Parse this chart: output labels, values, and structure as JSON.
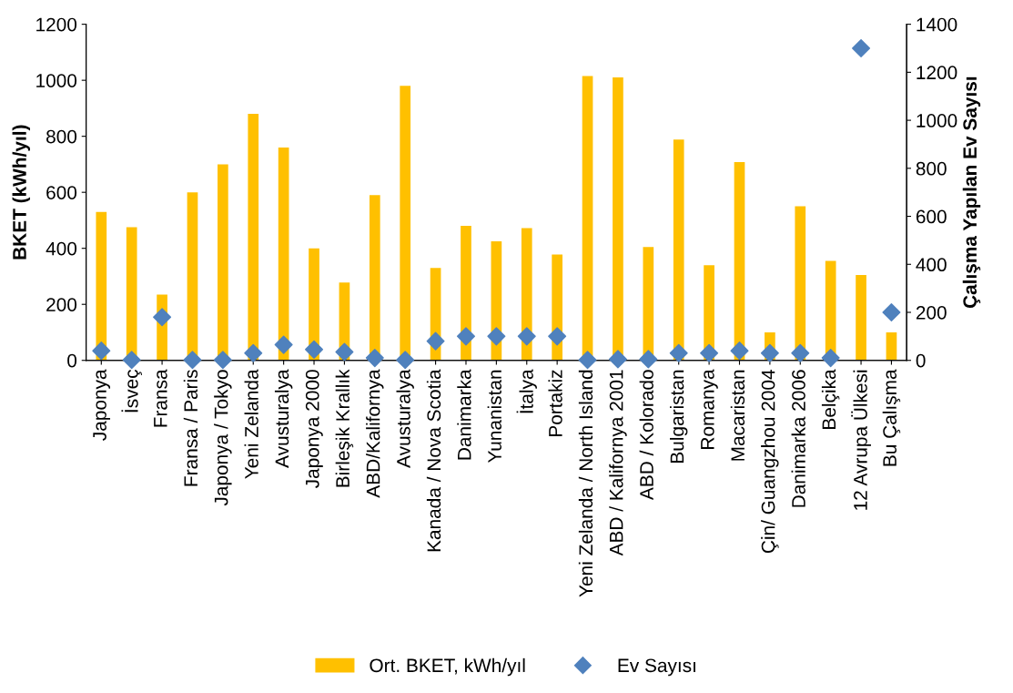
{
  "chart_data": {
    "type": "bar",
    "categories": [
      "Japonya",
      "İsveç",
      "Fransa",
      "Fransa / Paris",
      "Japonya / Tokyo",
      "Yeni Zelanda",
      "Avusturalya",
      "Japonya 2000",
      "Birleşik Krallık",
      "ABD/Kalifornya",
      "Avusturalya",
      "Kanada / Nova Scotia",
      "Danimarka",
      "Yunanistan",
      "İtalya",
      "Portakiz",
      "Yeni Zelanda / North Island",
      "ABD / Kalifornya 2001",
      "ABD / Kolorado",
      "Bulgaristan",
      "Romanya",
      "Macaristan",
      "Çin/ Guangzhou 2004",
      "Danimarka 2006",
      "Belçika",
      "12 Avrupa Ülkesi",
      "Bu Çalışma"
    ],
    "series": [
      {
        "name": "Ort. BKET, kWh/yıl",
        "color": "#ffc000",
        "values": [
          530,
          475,
          235,
          600,
          700,
          880,
          760,
          400,
          278,
          590,
          980,
          330,
          480,
          425,
          472,
          378,
          1015,
          1010,
          405,
          788,
          340,
          708,
          100,
          550,
          355,
          305,
          100
        ]
      },
      {
        "name": "Ev Sayısı",
        "type": "scatter",
        "axis": "y2",
        "color": "#4f81bd",
        "marker": "diamond",
        "values": [
          40,
          2,
          180,
          2,
          2,
          30,
          65,
          45,
          35,
          10,
          2,
          80,
          100,
          100,
          100,
          100,
          2,
          5,
          5,
          30,
          30,
          40,
          30,
          30,
          10,
          1300,
          200
        ]
      }
    ],
    "ylabel": "BKET (kWh/yıl)",
    "y2label": "Çalışma Yapılan Ev Sayısı",
    "ylim": [
      0,
      1200
    ],
    "yticks": [
      0,
      200,
      400,
      600,
      800,
      1000,
      1200
    ],
    "y2lim": [
      0,
      1400
    ],
    "y2ticks": [
      0,
      200,
      400,
      600,
      800,
      1000,
      1200,
      1400
    ],
    "legend": "bottom",
    "grid": false
  }
}
